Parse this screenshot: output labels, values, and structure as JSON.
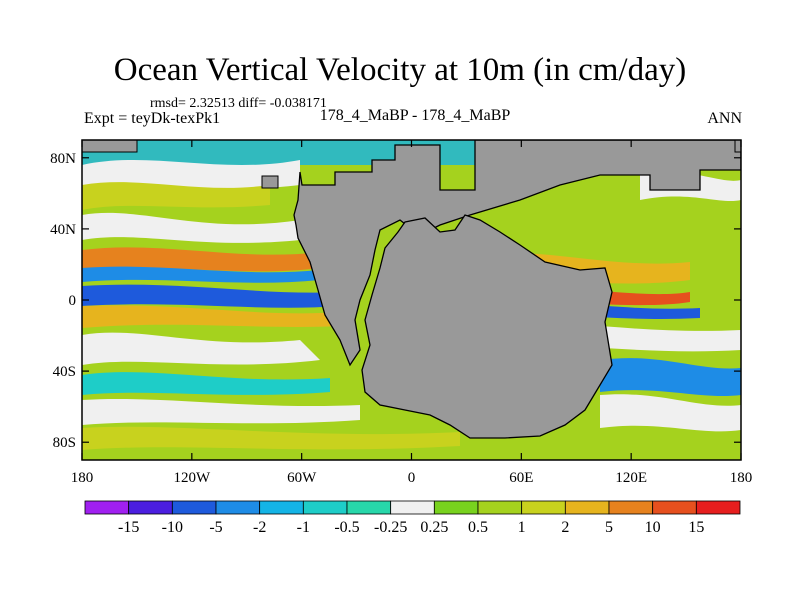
{
  "header": {
    "title": "Ocean Vertical Velocity at 10m (in cm/day)",
    "stats": "rmsd= 2.32513 diff= -0.038171",
    "left_label": "Expt = teyDk-texPk1",
    "center_label": "178_4_MaBP - 178_4_MaBP",
    "right_label": "ANN"
  },
  "chart_data": {
    "type": "heatmap",
    "title": "Ocean Vertical Velocity at 10m (in cm/day)",
    "x_tick_labels": [
      "180",
      "120W",
      "60W",
      "0",
      "60E",
      "120E",
      "180"
    ],
    "x_tick_values": [
      -180,
      -120,
      -60,
      0,
      60,
      120,
      180
    ],
    "y_tick_labels": [
      "80N",
      "40N",
      "0",
      "40S",
      "80S"
    ],
    "y_tick_values": [
      80,
      40,
      0,
      -40,
      -80
    ],
    "xlim": [
      -180,
      180
    ],
    "ylim": [
      -90,
      90
    ],
    "colorbar": {
      "labels": [
        "-15",
        "-10",
        "-5",
        "-2",
        "-1",
        "-0.5",
        "-0.25",
        "0.25",
        "0.5",
        "1",
        "2",
        "5",
        "10",
        "15"
      ],
      "colors": [
        "#a020f0",
        "#4b1ee0",
        "#1e5adc",
        "#1e8ce6",
        "#14b4e6",
        "#1ecdc8",
        "#28d7aa",
        "#f0f0f0",
        "#78d21e",
        "#a5d21e",
        "#c8d21e",
        "#e6b41e",
        "#e6821e",
        "#e6501e",
        "#e61e1e"
      ]
    },
    "land_color": "#999999"
  }
}
